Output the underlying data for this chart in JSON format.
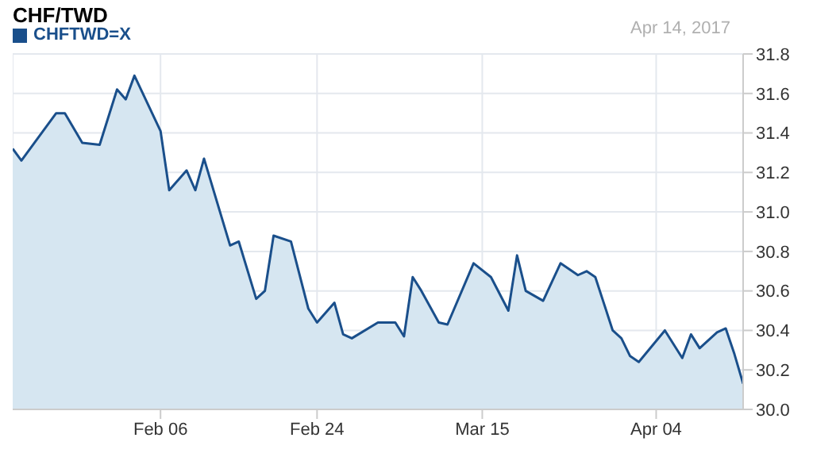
{
  "chart_data": {
    "type": "area",
    "title": "CHF/TWD",
    "annotations": [
      "Apr 14, 2017"
    ],
    "x": [
      "2017-01-20",
      "2017-01-21",
      "2017-01-25",
      "2017-01-26",
      "2017-01-28",
      "2017-01-30",
      "2017-02-01",
      "2017-02-02",
      "2017-02-03",
      "2017-02-06",
      "2017-02-07",
      "2017-02-09",
      "2017-02-10",
      "2017-02-11",
      "2017-02-14",
      "2017-02-15",
      "2017-02-17",
      "2017-02-18",
      "2017-02-19",
      "2017-02-21",
      "2017-02-23",
      "2017-02-24",
      "2017-02-26",
      "2017-02-27",
      "2017-02-28",
      "2017-03-03",
      "2017-03-05",
      "2017-03-06",
      "2017-03-07",
      "2017-03-08",
      "2017-03-10",
      "2017-03-11",
      "2017-03-14",
      "2017-03-16",
      "2017-03-18",
      "2017-03-19",
      "2017-03-20",
      "2017-03-22",
      "2017-03-24",
      "2017-03-26",
      "2017-03-27",
      "2017-03-28",
      "2017-03-30",
      "2017-03-31",
      "2017-04-01",
      "2017-04-02",
      "2017-04-05",
      "2017-04-07",
      "2017-04-08",
      "2017-04-09",
      "2017-04-11",
      "2017-04-12",
      "2017-04-13",
      "2017-04-14"
    ],
    "series": [
      {
        "name": "CHFTWD=X",
        "color": "#1a4f8b",
        "values": [
          31.32,
          31.26,
          31.5,
          31.5,
          31.35,
          31.34,
          31.62,
          31.57,
          31.69,
          31.41,
          31.11,
          31.21,
          31.11,
          31.27,
          30.83,
          30.85,
          30.56,
          30.6,
          30.88,
          30.85,
          30.51,
          30.44,
          30.54,
          30.38,
          30.36,
          30.44,
          30.44,
          30.37,
          30.67,
          30.6,
          30.44,
          30.43,
          30.74,
          30.67,
          30.5,
          30.78,
          30.6,
          30.55,
          30.74,
          30.68,
          30.7,
          30.67,
          30.4,
          30.36,
          30.27,
          30.24,
          30.4,
          30.26,
          30.38,
          30.31,
          30.39,
          30.41,
          30.28,
          30.13
        ]
      }
    ],
    "xlim": [
      "2017-01-20",
      "2017-04-14"
    ],
    "xticks": [
      {
        "value": "2017-02-06",
        "label": "Feb 06"
      },
      {
        "value": "2017-02-24",
        "label": "Feb 24"
      },
      {
        "value": "2017-03-15",
        "label": "Mar 15"
      },
      {
        "value": "2017-04-04",
        "label": "Apr 04"
      }
    ],
    "ylim": [
      30.0,
      31.8
    ],
    "yticks": [
      {
        "value": 30.0,
        "label": "30.0"
      },
      {
        "value": 30.2,
        "label": "30.2"
      },
      {
        "value": 30.4,
        "label": "30.4"
      },
      {
        "value": 30.6,
        "label": "30.6"
      },
      {
        "value": 30.8,
        "label": "30.8"
      },
      {
        "value": 31.0,
        "label": "31.0"
      },
      {
        "value": 31.2,
        "label": "31.2"
      },
      {
        "value": 31.4,
        "label": "31.4"
      },
      {
        "value": 31.6,
        "label": "31.6"
      },
      {
        "value": 31.8,
        "label": "31.8"
      }
    ],
    "grid": true,
    "legend": "top left"
  }
}
